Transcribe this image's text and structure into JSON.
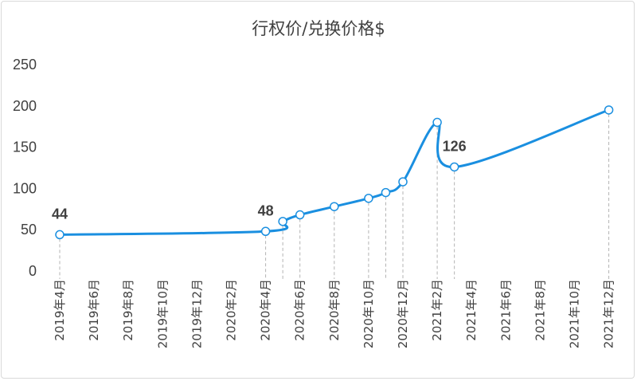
{
  "chart_data": {
    "type": "line",
    "title": "行权价/兑换价格$",
    "xlabel": "",
    "ylabel": "",
    "ylim": [
      0,
      250
    ],
    "yticks": [
      0,
      50,
      100,
      150,
      200,
      250
    ],
    "grid": false,
    "legend": "none",
    "line_color": "#1a8fe0",
    "x_ticks": [
      "2019年4月",
      "2019年6月",
      "2019年8月",
      "2019年10月",
      "2019年12月",
      "2020年2月",
      "2020年4月",
      "2020年6月",
      "2020年8月",
      "2020年10月",
      "2020年12月",
      "2021年2月",
      "2021年4月",
      "2021年6月",
      "2021年8月",
      "2021年10月",
      "2021年12月"
    ],
    "series": [
      {
        "x": [
          "2019-04",
          "2020-04",
          "2020-05",
          "2020-06",
          "2020-08",
          "2020-10",
          "2020-11",
          "2020-12",
          "2021-02",
          "2021-03",
          "2021-12"
        ],
        "values": [
          44,
          48,
          60,
          68,
          78,
          88,
          95,
          108,
          180,
          126,
          195
        ]
      }
    ],
    "data_labels": [
      {
        "x": "2019-04",
        "text": "44"
      },
      {
        "x": "2020-04",
        "text": "48"
      },
      {
        "x": "2021-03",
        "text": "126"
      }
    ]
  }
}
